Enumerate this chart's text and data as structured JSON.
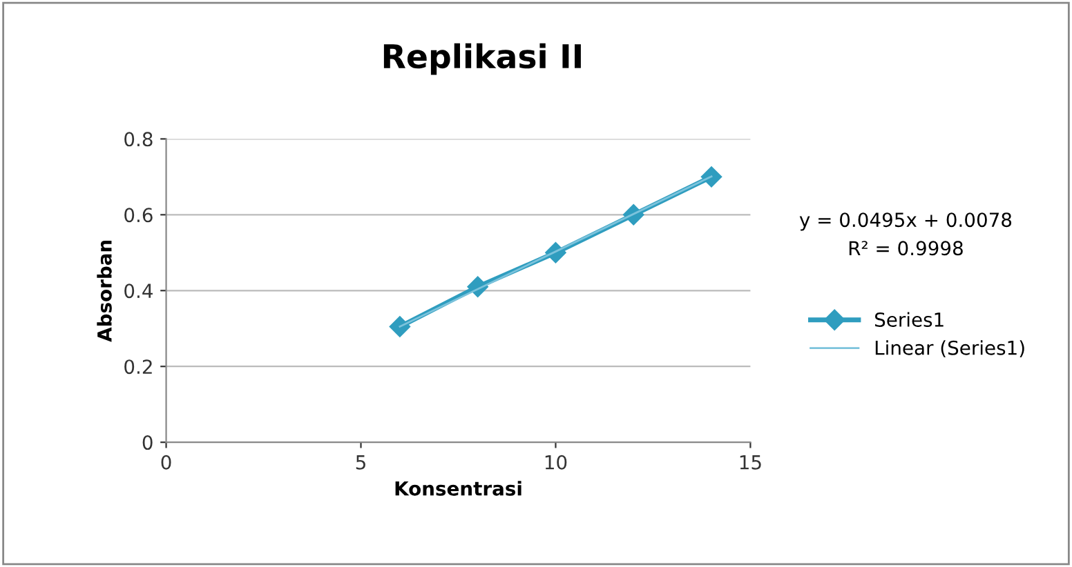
{
  "chart_data": {
    "type": "line",
    "title": "Replikasi II",
    "xlabel": "Konsentrasi",
    "ylabel": "Absorban",
    "x": [
      6,
      8,
      10,
      12,
      14
    ],
    "series": [
      {
        "name": "Series1",
        "color": "#2f9dbf",
        "values": [
          0.305,
          0.41,
          0.5,
          0.6,
          0.7
        ],
        "marker": "diamond"
      },
      {
        "name": "Linear (Series1)",
        "color": "#7cc3dc",
        "type": "line",
        "x": [
          6,
          14
        ],
        "values": [
          0.305,
          0.701
        ]
      }
    ],
    "xlim": [
      0,
      15
    ],
    "xticks": [
      0,
      5,
      10,
      15
    ],
    "ylim": [
      0,
      0.8
    ],
    "yticks": [
      0,
      0.2,
      0.4,
      0.6,
      0.8
    ],
    "grid": "y",
    "legend": "right",
    "annotations": [
      "y = 0.0495x + 0.0078",
      "R² = 0.9998"
    ]
  }
}
